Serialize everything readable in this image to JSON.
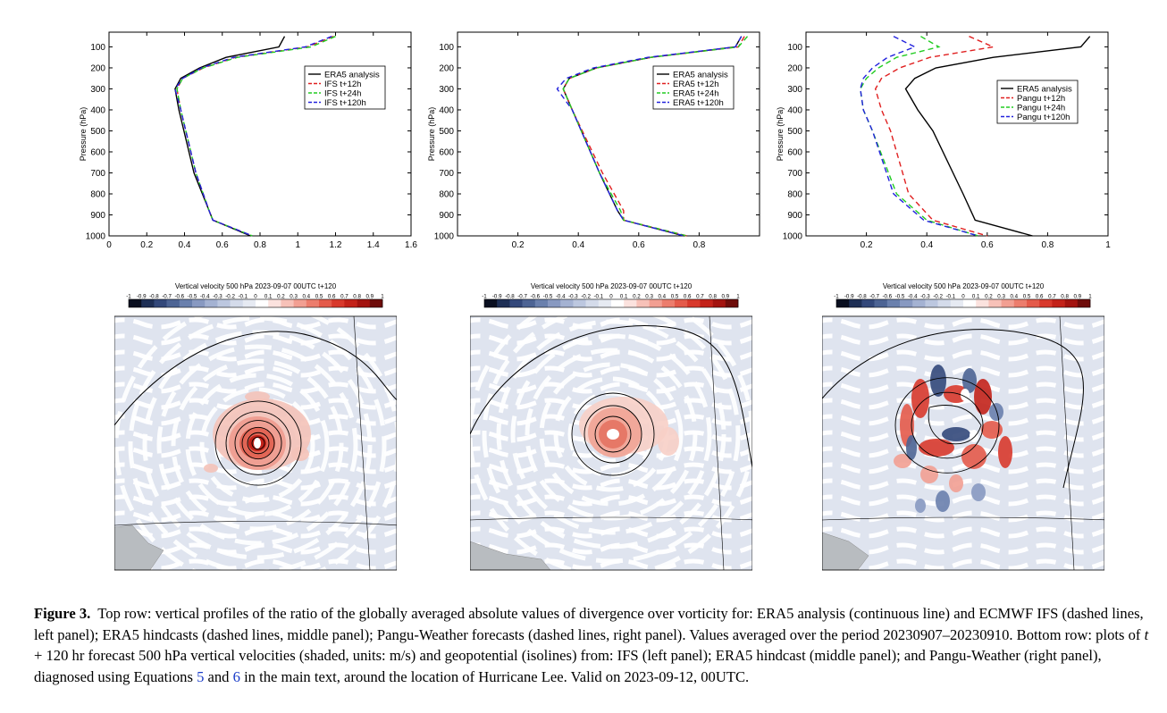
{
  "profiles": [
    {
      "id": "left",
      "ylabel": "Pressure (hPa)",
      "xticks": [
        "0",
        "0.2",
        "0.4",
        "0.6",
        "0.8",
        "1",
        "1.2",
        "1.4",
        "1.6"
      ],
      "xlim": [
        0,
        1.6
      ],
      "yticks": [
        "100",
        "200",
        "300",
        "400",
        "500",
        "600",
        "700",
        "800",
        "900",
        "1000"
      ],
      "legend": [
        "ERA5 analysis",
        "IFS t+12h",
        "IFS t+24h",
        "IFS t+120h"
      ],
      "legend_pos": "top-right",
      "series": [
        {
          "name": "ERA5 analysis",
          "color": "#000000",
          "dash": "",
          "x": [
            0.93,
            0.9,
            0.62,
            0.48,
            0.38,
            0.35,
            0.37,
            0.45,
            0.53,
            0.55,
            0.75
          ],
          "p": [
            50,
            100,
            150,
            200,
            250,
            300,
            400,
            700,
            880,
            925,
            1000
          ]
        },
        {
          "name": "IFS t+12h",
          "color": "#e02020",
          "dash": "6,4",
          "x": [
            1.19,
            1.05,
            0.67,
            0.5,
            0.39,
            0.36,
            0.38,
            0.46,
            0.53,
            0.55,
            0.76
          ],
          "p": [
            50,
            100,
            150,
            200,
            250,
            300,
            400,
            700,
            880,
            925,
            1000
          ]
        },
        {
          "name": "IFS t+24h",
          "color": "#22cc22",
          "dash": "6,4",
          "x": [
            1.2,
            1.07,
            0.68,
            0.5,
            0.39,
            0.36,
            0.38,
            0.46,
            0.53,
            0.55,
            0.76
          ],
          "p": [
            50,
            100,
            150,
            200,
            250,
            300,
            400,
            700,
            880,
            925,
            1000
          ]
        },
        {
          "name": "IFS t+120h",
          "color": "#2222dd",
          "dash": "6,4",
          "x": [
            1.18,
            1.04,
            0.66,
            0.49,
            0.39,
            0.35,
            0.38,
            0.46,
            0.53,
            0.55,
            0.76
          ],
          "p": [
            50,
            100,
            150,
            200,
            250,
            300,
            400,
            700,
            880,
            925,
            1000
          ]
        }
      ]
    },
    {
      "id": "middle",
      "ylabel": "Pressure (hPa)",
      "xticks": [
        "0.2",
        "0.4",
        "0.6",
        "0.8"
      ],
      "xlim": [
        0,
        1.0
      ],
      "xtickvals": [
        0.2,
        0.4,
        0.6,
        0.8
      ],
      "yticks": [
        "100",
        "200",
        "300",
        "400",
        "500",
        "600",
        "700",
        "800",
        "900",
        "1000"
      ],
      "legend": [
        "ERA5 analysis",
        "ERA5 t+12h",
        "ERA5 t+24h",
        "ERA5 t+120h"
      ],
      "legend_pos": "top-right",
      "series": [
        {
          "name": "ERA5 analysis",
          "color": "#000000",
          "dash": "",
          "x": [
            0.94,
            0.92,
            0.64,
            0.46,
            0.37,
            0.35,
            0.38,
            0.47,
            0.53,
            0.55,
            0.75
          ],
          "p": [
            50,
            100,
            150,
            200,
            250,
            300,
            400,
            700,
            880,
            925,
            1000
          ]
        },
        {
          "name": "ERA5 t+12h",
          "color": "#e02020",
          "dash": "6,4",
          "x": [
            0.95,
            0.93,
            0.64,
            0.46,
            0.37,
            0.35,
            0.38,
            0.48,
            0.55,
            0.55,
            0.76
          ],
          "p": [
            50,
            100,
            150,
            200,
            250,
            300,
            400,
            700,
            880,
            925,
            1000
          ]
        },
        {
          "name": "ERA5 t+24h",
          "color": "#22cc22",
          "dash": "6,4",
          "x": [
            0.96,
            0.93,
            0.64,
            0.46,
            0.37,
            0.35,
            0.38,
            0.47,
            0.54,
            0.55,
            0.76
          ],
          "p": [
            50,
            100,
            150,
            200,
            250,
            300,
            400,
            700,
            880,
            925,
            1000
          ]
        },
        {
          "name": "ERA5 t+120h",
          "color": "#2222dd",
          "dash": "6,4",
          "x": [
            0.94,
            0.92,
            0.63,
            0.45,
            0.36,
            0.33,
            0.38,
            0.47,
            0.53,
            0.55,
            0.75
          ],
          "p": [
            50,
            100,
            150,
            200,
            250,
            300,
            400,
            700,
            880,
            925,
            1000
          ]
        }
      ]
    },
    {
      "id": "right",
      "ylabel": "Pressure (hPa)",
      "xticks": [
        "0.2",
        "0.4",
        "0.6",
        "0.8",
        "1"
      ],
      "xlim": [
        0,
        1.0
      ],
      "xtickvals": [
        0.2,
        0.4,
        0.6,
        0.8,
        1.0
      ],
      "yticks": [
        "100",
        "200",
        "300",
        "400",
        "500",
        "600",
        "700",
        "800",
        "900",
        "1000"
      ],
      "legend": [
        "ERA5 analysis",
        "Pangu t+12h",
        "Pangu t+24h",
        "Pangu t+120h"
      ],
      "legend_pos": "middle-right",
      "series": [
        {
          "name": "ERA5 analysis",
          "color": "#000000",
          "dash": "",
          "x": [
            0.94,
            0.91,
            0.62,
            0.43,
            0.36,
            0.33,
            0.37,
            0.42,
            0.52,
            0.56,
            0.75
          ],
          "p": [
            50,
            100,
            150,
            200,
            250,
            300,
            400,
            500,
            800,
            925,
            1000
          ]
        },
        {
          "name": "Pangu t+12h",
          "color": "#e02020",
          "dash": "6,4",
          "x": [
            0.54,
            0.62,
            0.41,
            0.31,
            0.25,
            0.23,
            0.25,
            0.28,
            0.34,
            0.42,
            0.6
          ],
          "p": [
            50,
            100,
            150,
            200,
            250,
            300,
            400,
            500,
            800,
            925,
            1000
          ]
        },
        {
          "name": "Pangu t+24h",
          "color": "#22cc22",
          "dash": "6,4",
          "x": [
            0.38,
            0.44,
            0.3,
            0.24,
            0.2,
            0.18,
            0.19,
            0.22,
            0.3,
            0.4,
            0.57
          ],
          "p": [
            50,
            100,
            150,
            200,
            250,
            300,
            400,
            500,
            800,
            925,
            1000
          ]
        },
        {
          "name": "Pangu t+120h",
          "color": "#2222dd",
          "dash": "6,4",
          "x": [
            0.29,
            0.36,
            0.27,
            0.22,
            0.19,
            0.18,
            0.19,
            0.22,
            0.29,
            0.39,
            0.57
          ],
          "p": [
            50,
            100,
            150,
            200,
            250,
            300,
            400,
            500,
            800,
            925,
            1000
          ]
        }
      ]
    }
  ],
  "maps": [
    {
      "id": "ifs",
      "title": "Vertical velocity 500 hPa 2023-09-07 00UTC t+120"
    },
    {
      "id": "era5",
      "title": "Vertical velocity 500 hPa 2023-09-07 00UTC t+120"
    },
    {
      "id": "pangu",
      "title": "Vertical velocity 500 hPa 2023-09-07 00UTC t+120"
    }
  ],
  "colorbar": {
    "labels": [
      "-1",
      "-0.9",
      "-0.8",
      "-0.7",
      "-0.6",
      "-0.5",
      "-0.4",
      "-0.3",
      "-0.2",
      "-0.1",
      "0",
      "0.1",
      "0.2",
      "0.3",
      "0.4",
      "0.5",
      "0.6",
      "0.7",
      "0.8",
      "0.9",
      "1"
    ],
    "colors": [
      "#0a0f20",
      "#1e2f55",
      "#33487a",
      "#4d6494",
      "#6a80ad",
      "#8899c1",
      "#a4b2d2",
      "#bcc7df",
      "#d4dbea",
      "#e6eaf2",
      "#ffffff",
      "#fbe2de",
      "#f7c1b8",
      "#f29f92",
      "#ec7d6d",
      "#e45a4a",
      "#d8392c",
      "#c32219",
      "#a3130f",
      "#6e0c0a"
    ]
  },
  "caption": {
    "label": "Figure 3.",
    "t1": "Top row: vertical profiles of the ratio of the globally averaged absolute values of divergence over vorticity for: ERA5 analysis (continuous line) and ECMWF IFS (dashed lines, left panel); ERA5 hindcasts (dashed lines, middle panel); Pangu-Weather forecasts (dashed lines, right panel). Values averaged over the period 20230907–20230910. Bottom row: plots of ",
    "t_ital": "t",
    "t2": " + 120 hr forecast 500 hPa vertical velocities (shaded, units: m/s) and geopotential (isolines) from: IFS (left panel); ERA5 hindcast (middle panel); and Pangu-Weather (right panel), diagnosed using Equations ",
    "eq1": "5",
    "and": " and ",
    "eq2": "6",
    "t3": " in the main text, around the location of Hurricane Lee. Valid on 2023-09-12, 00UTC."
  }
}
